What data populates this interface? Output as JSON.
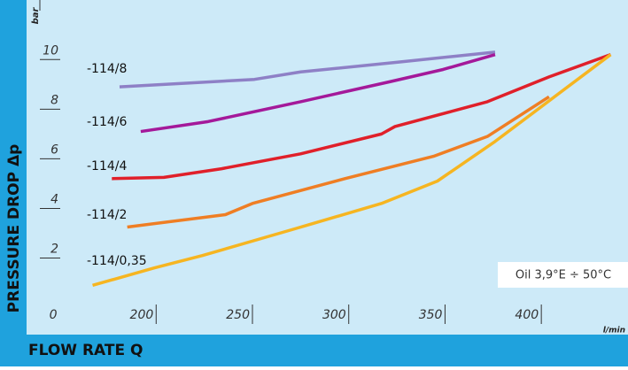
{
  "chart_data": {
    "type": "line",
    "y_label": "PRESSURE DROP Δp",
    "x_label": "FLOW RATE Q",
    "y_unit": "bar",
    "x_unit": "l/min",
    "annotation": "Oil 3,9°E ÷ 50°C",
    "xlim": [
      141,
      445
    ],
    "ylim": [
      -0.8,
      12.4
    ],
    "xticks": [
      {
        "value": 150,
        "label": "0"
      },
      200,
      250,
      300,
      350,
      400
    ],
    "yticks": [
      2,
      4,
      6,
      8,
      10
    ],
    "series": [
      {
        "name": "-114/8",
        "color": "#8e80c6",
        "x": [
          181,
          251,
          275,
          326,
          376
        ],
        "values": [
          8.9,
          9.2,
          9.5,
          9.9,
          10.3
        ]
      },
      {
        "name": "-114/6",
        "color": "#a4199a",
        "x": [
          192,
          227,
          275,
          321,
          349,
          376
        ],
        "values": [
          7.1,
          7.5,
          8.3,
          9.1,
          9.6,
          10.2
        ]
      },
      {
        "name": "-114/4",
        "color": "#e0202a",
        "x": [
          177,
          204,
          234,
          275,
          317,
          324,
          372,
          404,
          436
        ],
        "values": [
          5.2,
          5.25,
          5.6,
          6.2,
          7.0,
          7.3,
          8.3,
          9.3,
          10.2
        ]
      },
      {
        "name": "-114/2",
        "color": "#ef7e24",
        "x": [
          185,
          236,
          250,
          298,
          344,
          372,
          404
        ],
        "values": [
          3.25,
          3.75,
          4.2,
          5.2,
          6.1,
          6.9,
          8.5
        ]
      },
      {
        "name": "-114/0,35",
        "color": "#f6b521",
        "x": [
          167,
          199,
          224,
          273,
          317,
          346,
          376,
          436
        ],
        "values": [
          0.9,
          1.6,
          2.1,
          3.2,
          4.2,
          5.1,
          6.7,
          10.2
        ]
      }
    ]
  }
}
